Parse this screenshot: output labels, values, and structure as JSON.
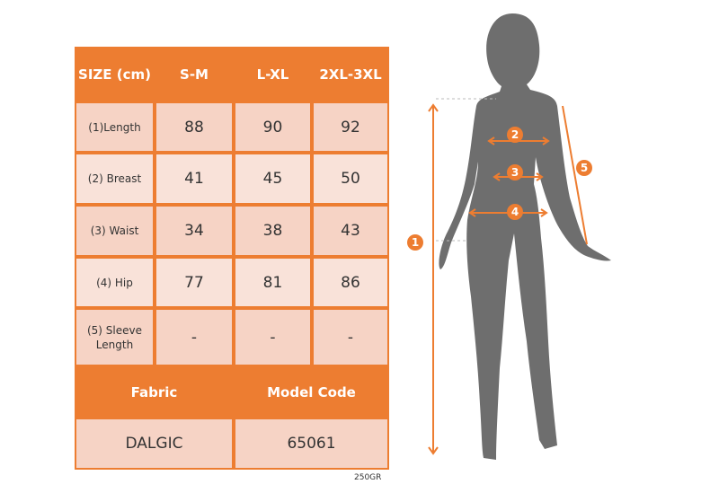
{
  "table": {
    "header": [
      "SIZE (cm)",
      "S-M",
      "L-XL",
      "2XL-3XL"
    ],
    "rows": [
      {
        "label": "(1)Length",
        "values": [
          "88",
          "90",
          "92"
        ]
      },
      {
        "label": "(2) Breast",
        "values": [
          "41",
          "45",
          "50"
        ]
      },
      {
        "label": "(3) Waist",
        "values": [
          "34",
          "38",
          "43"
        ]
      },
      {
        "label": "(4) Hip",
        "values": [
          "77",
          "81",
          "86"
        ]
      },
      {
        "label": "(5) Sleeve Length",
        "values": [
          "-",
          "-",
          "-"
        ]
      }
    ],
    "fabric_header": "Fabric",
    "model_header": "Model Code",
    "fabric": "DALGIC",
    "model_code": "65061"
  },
  "weight_code": "250GR",
  "figure": {
    "markers": [
      "1",
      "2",
      "3",
      "4",
      "5"
    ]
  },
  "colors": {
    "accent": "#ED7D31",
    "cell": "#F6D3C5",
    "cell_alt": "#F9E2D9",
    "silhouette": "#6E6E6E"
  }
}
